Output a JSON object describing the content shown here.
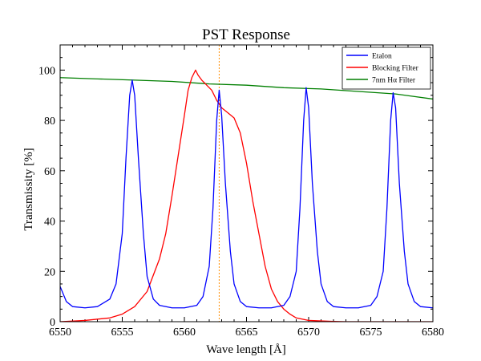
{
  "chart_data": {
    "type": "line",
    "title": "PST Response",
    "xlabel": "Wave length [Å]",
    "ylabel": "Transmissity [%]",
    "xlim": [
      6550,
      6580
    ],
    "ylim": [
      0,
      110
    ],
    "xticks": [
      6550,
      6555,
      6560,
      6565,
      6570,
      6575,
      6580
    ],
    "yticks": [
      0,
      20,
      40,
      60,
      80,
      100
    ],
    "xtick_labels": [
      "6550",
      "6555",
      "6560",
      "6565",
      "6570",
      "6575",
      "6580"
    ],
    "ytick_labels": [
      "0",
      "20",
      "40",
      "60",
      "80",
      "100"
    ],
    "legend_position": "top-right",
    "vline": {
      "x": 6562.8,
      "color": "#ff8c00",
      "style": "dotted"
    },
    "series": [
      {
        "name": "Etalon",
        "color": "#0000ff",
        "x": [
          6550.0,
          6550.5,
          6551,
          6552,
          6553,
          6554,
          6554.5,
          6555,
          6555.3,
          6555.6,
          6555.8,
          6556.0,
          6556.3,
          6556.7,
          6557,
          6557.5,
          6558,
          6559,
          6560,
          6561,
          6561.5,
          6562,
          6562.3,
          6562.6,
          6562.8,
          6563.0,
          6563.3,
          6563.7,
          6564,
          6564.5,
          6565,
          6566,
          6567,
          6568,
          6568.5,
          6569,
          6569.3,
          6569.6,
          6569.8,
          6570.0,
          6570.3,
          6570.7,
          6571,
          6571.5,
          6572,
          6573,
          6574,
          6575,
          6575.5,
          6576,
          6576.3,
          6576.6,
          6576.8,
          6577.0,
          6577.3,
          6577.7,
          6578,
          6578.5,
          6579,
          6580
        ],
        "values": [
          14,
          8,
          6,
          5.5,
          6,
          9,
          15,
          35,
          65,
          90,
          96,
          90,
          65,
          35,
          18,
          9,
          6.5,
          5.5,
          5.5,
          6.5,
          10,
          22,
          45,
          80,
          92,
          82,
          55,
          28,
          15,
          8,
          6,
          5.5,
          5.5,
          6.5,
          10,
          20,
          45,
          80,
          93,
          85,
          55,
          28,
          15,
          8,
          6,
          5.5,
          5.5,
          6.5,
          10,
          20,
          45,
          80,
          91,
          85,
          55,
          28,
          15,
          8,
          6,
          5.5
        ]
      },
      {
        "name": "Blocking Filter",
        "color": "#ff0000",
        "x": [
          6550,
          6552,
          6554,
          6555,
          6556,
          6557,
          6558,
          6558.5,
          6559,
          6559.5,
          6560,
          6560.3,
          6560.6,
          6560.9,
          6561.1,
          6561.4,
          6561.8,
          6562.2,
          6562.6,
          6563,
          6563.5,
          6564,
          6564.5,
          6565,
          6565.5,
          6566,
          6566.5,
          6567,
          6567.5,
          6568,
          6568.5,
          6569,
          6570,
          6571,
          6572,
          6573,
          6574,
          6575,
          6576,
          6577,
          6578,
          6580
        ],
        "values": [
          0,
          0.5,
          1.5,
          3,
          6,
          12,
          25,
          35,
          50,
          66,
          82,
          92,
          97,
          100,
          98,
          96,
          94,
          92,
          88,
          85,
          83,
          81,
          75,
          63,
          48,
          35,
          22,
          13,
          8,
          5,
          3,
          1.5,
          0.5,
          0.3,
          0.1,
          0,
          0,
          0,
          0,
          0,
          0,
          0
        ]
      },
      {
        "name": "7nm Hα Filter",
        "color": "#007f00",
        "x": [
          6550,
          6553,
          6556,
          6559,
          6562,
          6565,
          6568,
          6571,
          6574,
          6577,
          6580
        ],
        "values": [
          97,
          96.5,
          96,
          95.5,
          94.5,
          94,
          93,
          92.5,
          91.5,
          90.5,
          88.5
        ]
      }
    ]
  }
}
